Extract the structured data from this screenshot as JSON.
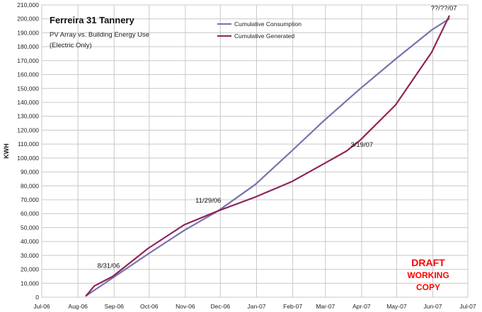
{
  "chart_data": {
    "type": "line",
    "title": "Ferreira 31 Tannery",
    "subtitle_lines": [
      "PV Array vs. Building Energy Use",
      "(Electric Only)"
    ],
    "xlabel": "",
    "ylabel": "KWH",
    "ylim": [
      0,
      210000
    ],
    "y_ticks": [
      0,
      10000,
      20000,
      30000,
      40000,
      50000,
      60000,
      70000,
      80000,
      90000,
      100000,
      110000,
      120000,
      130000,
      140000,
      150000,
      160000,
      170000,
      180000,
      190000,
      200000,
      210000
    ],
    "y_tick_labels": [
      "0",
      "10,000",
      "20,000",
      "30,000",
      "40,000",
      "50,000",
      "60,000",
      "70,000",
      "80,000",
      "90,000",
      "100,000",
      "110,000",
      "120,000",
      "130,000",
      "140,000",
      "150,000",
      "160,000",
      "170,000",
      "180,000",
      "190,000",
      "200,000",
      "210,000"
    ],
    "x_range": [
      "2006-07-01",
      "2007-07-01"
    ],
    "x_ticks": [
      "2006-07-01",
      "2006-08-01",
      "2006-09-01",
      "2006-10-01",
      "2006-11-01",
      "2006-12-01",
      "2007-01-01",
      "2007-02-01",
      "2007-03-01",
      "2007-04-01",
      "2007-05-01",
      "2007-06-01",
      "2007-07-01"
    ],
    "x_tick_labels": [
      "Jul-06",
      "Aug-06",
      "Sep-06",
      "Oct-06",
      "Nov-06",
      "Dec-06",
      "Jan-07",
      "Feb-07",
      "Mar-07",
      "Apr-07",
      "May-07",
      "Jun-07",
      "Jul-07"
    ],
    "grid": true,
    "legend_placement": "top-center",
    "series": [
      {
        "name": "Cumulative Consumption",
        "color": "#7b70ad",
        "x": [
          "2006-08-08",
          "2006-08-31",
          "2006-09-30",
          "2006-10-31",
          "2006-11-29",
          "2006-12-31",
          "2007-01-31",
          "2007-02-28",
          "2007-03-31",
          "2007-04-30",
          "2007-05-31",
          "2007-06-15"
        ],
        "y": [
          1000,
          14000,
          31000,
          48000,
          62000,
          81000,
          105000,
          127000,
          150000,
          171000,
          192000,
          200000
        ]
      },
      {
        "name": "Cumulative Generated",
        "color": "#8e2459",
        "x": [
          "2006-08-08",
          "2006-08-15",
          "2006-08-31",
          "2006-09-30",
          "2006-10-31",
          "2006-11-29",
          "2006-12-31",
          "2007-01-31",
          "2007-02-28",
          "2007-03-19",
          "2007-03-31",
          "2007-04-30",
          "2007-05-31",
          "2007-06-15"
        ],
        "y": [
          1000,
          8000,
          15000,
          35000,
          52000,
          62000,
          72000,
          83000,
          96000,
          105000,
          113000,
          138000,
          176000,
          202000
        ]
      }
    ],
    "annotations": [
      {
        "text": "8/31/06",
        "x": "2006-08-31",
        "y": 14000
      },
      {
        "text": "11/29/06",
        "x": "2006-11-29",
        "y": 62000
      },
      {
        "text": "3/19/07",
        "x": "2007-03-19",
        "y": 105000
      },
      {
        "text": "??/??/07",
        "x": "2007-06-15",
        "y": 201000
      }
    ],
    "watermark": {
      "lines": [
        "DRAFT",
        "WORKING",
        "COPY"
      ],
      "color": "#ff0000"
    }
  }
}
